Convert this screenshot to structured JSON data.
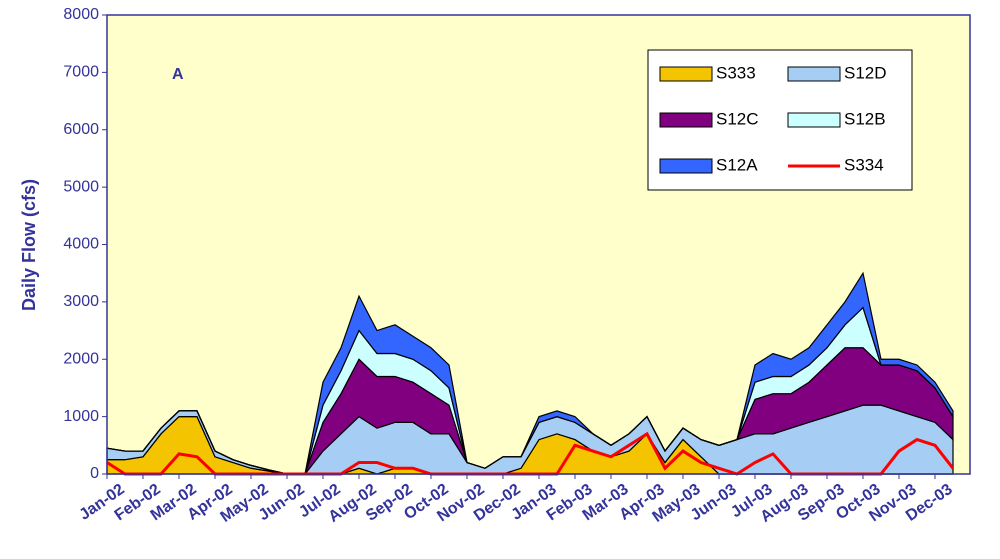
{
  "chart_data": {
    "type": "stacked_area",
    "annotation": "A",
    "y_label": "Daily Flow (cfs)",
    "categories": [
      "Jan-02",
      null,
      "Feb-02",
      null,
      "Mar-02",
      null,
      "Apr-02",
      null,
      "May-02",
      null,
      "Jun-02",
      null,
      "Jul-02",
      null,
      "Aug-02",
      null,
      "Sep-02",
      null,
      "Oct-02",
      null,
      "Nov-02",
      null,
      "Dec-02",
      null,
      "Jan-03",
      null,
      "Feb-03",
      null,
      "Mar-03",
      null,
      "Apr-03",
      null,
      "May-03",
      null,
      "Jun-03",
      null,
      "Jul-03",
      null,
      "Aug-03",
      null,
      "Sep-03",
      null,
      "Oct-03",
      null,
      "Nov-03",
      null,
      "Dec-03",
      null
    ],
    "ylim": [
      0,
      8000
    ],
    "yticks": [
      0,
      1000,
      2000,
      3000,
      4000,
      5000,
      6000,
      7000,
      8000
    ],
    "background": "#ffffcc",
    "series": [
      {
        "name": "S333",
        "color": "#f5c400",
        "values": [
          250,
          250,
          300,
          700,
          1000,
          1000,
          300,
          200,
          100,
          50,
          0,
          0,
          0,
          0,
          100,
          0,
          100,
          100,
          0,
          0,
          0,
          0,
          0,
          100,
          600,
          700,
          600,
          400,
          300,
          400,
          700,
          200,
          600,
          300,
          0,
          0,
          0,
          0,
          0,
          0,
          0,
          0,
          0,
          0,
          0,
          0,
          0,
          0
        ]
      },
      {
        "name": "S12D",
        "color": "#a6cdf4",
        "values": [
          200,
          150,
          100,
          100,
          100,
          100,
          100,
          50,
          50,
          20,
          0,
          0,
          400,
          700,
          900,
          800,
          800,
          800,
          700,
          700,
          200,
          100,
          300,
          200,
          300,
          300,
          300,
          300,
          200,
          300,
          300,
          200,
          200,
          300,
          500,
          600,
          700,
          700,
          800,
          900,
          1000,
          1100,
          1200,
          1200,
          1100,
          1000,
          900,
          600
        ]
      },
      {
        "name": "S12C",
        "color": "#800080",
        "values": [
          0,
          0,
          0,
          0,
          0,
          0,
          0,
          0,
          0,
          0,
          0,
          0,
          500,
          700,
          1000,
          900,
          800,
          700,
          700,
          500,
          0,
          0,
          0,
          0,
          0,
          0,
          0,
          0,
          0,
          0,
          0,
          0,
          0,
          0,
          0,
          0,
          600,
          700,
          600,
          700,
          900,
          1100,
          1000,
          700,
          800,
          800,
          600,
          400
        ]
      },
      {
        "name": "S12B",
        "color": "#ccffff",
        "values": [
          0,
          0,
          0,
          0,
          0,
          0,
          0,
          0,
          0,
          0,
          0,
          0,
          300,
          400,
          500,
          400,
          400,
          400,
          400,
          300,
          0,
          0,
          0,
          0,
          0,
          0,
          0,
          0,
          0,
          0,
          0,
          0,
          0,
          0,
          0,
          0,
          300,
          300,
          300,
          300,
          300,
          400,
          700,
          0,
          0,
          0,
          0,
          0
        ]
      },
      {
        "name": "S12A",
        "color": "#3366ff",
        "values": [
          0,
          0,
          0,
          0,
          0,
          0,
          0,
          0,
          0,
          0,
          0,
          0,
          400,
          400,
          600,
          400,
          500,
          400,
          400,
          400,
          0,
          0,
          0,
          0,
          100,
          100,
          100,
          0,
          0,
          0,
          0,
          0,
          0,
          0,
          0,
          0,
          300,
          400,
          300,
          300,
          400,
          400,
          600,
          100,
          100,
          100,
          100,
          100
        ]
      },
      {
        "name": "S334",
        "color": "#ff0000",
        "line": true,
        "values": [
          200,
          0,
          0,
          0,
          350,
          300,
          0,
          0,
          0,
          0,
          0,
          0,
          0,
          0,
          200,
          200,
          100,
          100,
          0,
          0,
          0,
          0,
          0,
          0,
          0,
          0,
          500,
          400,
          300,
          500,
          700,
          100,
          400,
          200,
          100,
          0,
          200,
          350,
          0,
          0,
          0,
          0,
          0,
          0,
          400,
          600,
          500,
          100
        ]
      }
    ]
  }
}
